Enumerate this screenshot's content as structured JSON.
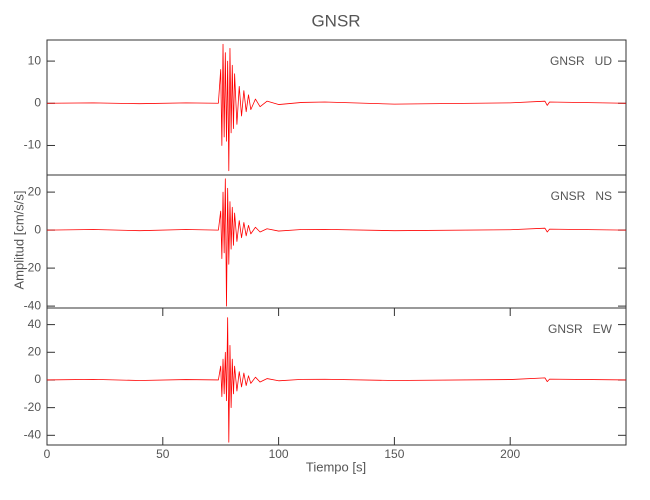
{
  "title": "GNSR",
  "xlabel": "Tiempo [s]",
  "ylabel": "Amplitud [cm/s/s]",
  "chart_data": [
    {
      "type": "line",
      "label": "GNSR   UD",
      "color": "#ff0000",
      "xlim": [
        0,
        250
      ],
      "ylim": [
        -17,
        15
      ],
      "yticks": [
        -10,
        0,
        10
      ],
      "x": [
        0,
        20,
        40,
        60,
        74,
        75,
        75.5,
        76,
        76.5,
        77,
        77.5,
        78,
        78.5,
        79,
        79.5,
        80,
        80.5,
        81,
        82,
        83,
        84,
        85,
        86,
        87,
        88,
        90,
        92,
        95,
        100,
        110,
        120,
        150,
        200,
        215,
        216,
        217,
        250
      ],
      "values": [
        0,
        0.1,
        -0.1,
        0.1,
        0,
        8,
        -10,
        14,
        -8,
        12,
        -9,
        10,
        -16,
        13,
        -7,
        9,
        -6,
        7,
        -5,
        4,
        -3,
        3,
        -2,
        2,
        -1.5,
        1,
        -0.8,
        0.5,
        -0.3,
        0.2,
        0.3,
        -0.2,
        0.1,
        0.5,
        -0.5,
        0.3,
        0
      ]
    },
    {
      "type": "line",
      "label": "GNSR   NS",
      "color": "#ff0000",
      "xlim": [
        0,
        250
      ],
      "ylim": [
        -41,
        29
      ],
      "yticks": [
        -40,
        -20,
        0,
        20
      ],
      "x": [
        0,
        20,
        40,
        60,
        74,
        75,
        75.5,
        76,
        76.5,
        77,
        77.5,
        78,
        78.5,
        79,
        79.5,
        80,
        80.5,
        81,
        82,
        83,
        84,
        85,
        86,
        87,
        88,
        90,
        92,
        95,
        100,
        110,
        120,
        150,
        200,
        215,
        216,
        217,
        250
      ],
      "values": [
        0,
        0.3,
        -0.3,
        0.3,
        0,
        10,
        -15,
        20,
        -12,
        27,
        -40,
        22,
        -18,
        15,
        -10,
        12,
        -8,
        9,
        -6,
        5,
        -4,
        4,
        -3,
        2.5,
        -2,
        1.5,
        -1,
        0.7,
        -0.5,
        0.3,
        0.4,
        -0.3,
        0.2,
        1,
        -1,
        0.5,
        0
      ]
    },
    {
      "type": "line",
      "label": "GNSR   EW",
      "color": "#ff0000",
      "xlim": [
        0,
        250
      ],
      "ylim": [
        -47,
        52
      ],
      "yticks": [
        -40,
        -20,
        0,
        20,
        40
      ],
      "xticks": [
        0,
        50,
        100,
        150,
        200
      ],
      "x": [
        0,
        20,
        40,
        60,
        74,
        75,
        75.5,
        76,
        76.5,
        77,
        77.5,
        78,
        78.5,
        79,
        79.5,
        80,
        80.5,
        81,
        82,
        83,
        84,
        85,
        86,
        87,
        88,
        90,
        92,
        95,
        100,
        110,
        120,
        150,
        200,
        215,
        216,
        217,
        250
      ],
      "values": [
        0,
        0.4,
        -0.4,
        0.3,
        0,
        10,
        -12,
        15,
        -10,
        20,
        -15,
        45,
        -45,
        25,
        -20,
        15,
        -10,
        10,
        -8,
        6,
        -5,
        5,
        -4,
        3,
        -2.5,
        2,
        -1.5,
        1,
        -0.6,
        0.4,
        0.5,
        -0.4,
        0.3,
        1.5,
        -1.2,
        0.6,
        0
      ]
    }
  ]
}
